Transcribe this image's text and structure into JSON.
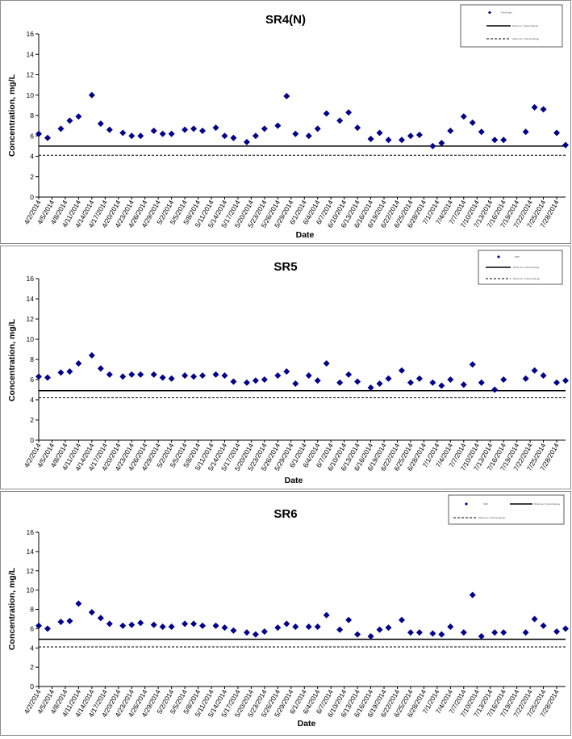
{
  "charts": [
    {
      "title": "SR4(N)",
      "ylabel": "Concentration, mg/L",
      "xlabel": "Date",
      "legend": {
        "marker_label": "Field Data",
        "solid_label": "Minimum Criteria Range",
        "dashed_label": "Maximum Criteria Range"
      }
    },
    {
      "title": "SR5",
      "ylabel": "Concentration, mg/L",
      "xlabel": "Date",
      "legend": {
        "marker_label": "SR5",
        "solid_label": "Minimum Criteria Range",
        "dashed_label": "Maximum Criteria Range"
      }
    },
    {
      "title": "SR6",
      "ylabel": "Concentration, mg/L",
      "xlabel": "Date",
      "legend": {
        "marker_label": "SR6",
        "solid_label": "Minimum Criteria Range",
        "dashed_label": "Maximum Criteria Range"
      }
    }
  ],
  "chart_data": [
    {
      "type": "scatter",
      "title": "SR4(N)",
      "xlabel": "Date",
      "ylabel": "Concentration, mg/L",
      "ylim": [
        0,
        16
      ],
      "yticks": [
        0,
        2,
        4,
        6,
        8,
        10,
        12,
        14,
        16
      ],
      "xlim": [
        "4/2/2014",
        "7/30/2014"
      ],
      "xticks": [
        "4/2/2014",
        "4/5/2014",
        "4/8/2014",
        "4/11/2014",
        "4/14/2014",
        "4/17/2014",
        "4/20/2014",
        "4/23/2014",
        "4/26/2014",
        "4/29/2014",
        "5/2/2014",
        "5/5/2014",
        "5/8/2014",
        "5/11/2014",
        "5/14/2014",
        "5/17/2014",
        "5/20/2014",
        "5/23/2014",
        "5/26/2014",
        "5/29/2014",
        "6/1/2014",
        "6/4/2014",
        "6/7/2014",
        "6/10/2014",
        "6/13/2014",
        "6/16/2014",
        "6/19/2014",
        "6/22/2014",
        "6/25/2014",
        "6/28/2014",
        "7/1/2014",
        "7/4/2014",
        "7/7/2014",
        "7/10/2014",
        "7/13/2014",
        "7/16/2014",
        "7/19/2014",
        "7/22/2014",
        "7/25/2014",
        "7/28/2014"
      ],
      "grid": false,
      "legend_position": "top-right",
      "marker_color": "#00008b",
      "reference_lines": [
        {
          "style": "solid",
          "value": 5.0,
          "color": "#000000"
        },
        {
          "style": "dashed",
          "value": 4.1,
          "color": "#000000"
        }
      ],
      "points": [
        {
          "x": "4/2/2014",
          "y": 6.2
        },
        {
          "x": "4/4/2014",
          "y": 5.8
        },
        {
          "x": "4/7/2014",
          "y": 6.7
        },
        {
          "x": "4/9/2014",
          "y": 7.5
        },
        {
          "x": "4/11/2014",
          "y": 7.9
        },
        {
          "x": "4/14/2014",
          "y": 10.0
        },
        {
          "x": "4/16/2014",
          "y": 7.2
        },
        {
          "x": "4/18/2014",
          "y": 6.6
        },
        {
          "x": "4/21/2014",
          "y": 6.3
        },
        {
          "x": "4/23/2014",
          "y": 6.0
        },
        {
          "x": "4/25/2014",
          "y": 6.0
        },
        {
          "x": "4/28/2014",
          "y": 6.5
        },
        {
          "x": "4/30/2014",
          "y": 6.2
        },
        {
          "x": "5/2/2014",
          "y": 6.2
        },
        {
          "x": "5/5/2014",
          "y": 6.6
        },
        {
          "x": "5/7/2014",
          "y": 6.7
        },
        {
          "x": "5/9/2014",
          "y": 6.5
        },
        {
          "x": "5/12/2014",
          "y": 6.8
        },
        {
          "x": "5/14/2014",
          "y": 6.0
        },
        {
          "x": "5/16/2014",
          "y": 5.8
        },
        {
          "x": "5/19/2014",
          "y": 5.4
        },
        {
          "x": "5/21/2014",
          "y": 6.0
        },
        {
          "x": "5/23/2014",
          "y": 6.7
        },
        {
          "x": "5/26/2014",
          "y": 7.0
        },
        {
          "x": "5/28/2014",
          "y": 9.9
        },
        {
          "x": "5/30/2014",
          "y": 6.2
        },
        {
          "x": "6/2/2014",
          "y": 6.0
        },
        {
          "x": "6/4/2014",
          "y": 6.7
        },
        {
          "x": "6/6/2014",
          "y": 8.2
        },
        {
          "x": "6/9/2014",
          "y": 7.5
        },
        {
          "x": "6/11/2014",
          "y": 8.3
        },
        {
          "x": "6/13/2014",
          "y": 6.8
        },
        {
          "x": "6/16/2014",
          "y": 5.7
        },
        {
          "x": "6/18/2014",
          "y": 6.3
        },
        {
          "x": "6/20/2014",
          "y": 5.6
        },
        {
          "x": "6/23/2014",
          "y": 5.6
        },
        {
          "x": "6/25/2014",
          "y": 6.0
        },
        {
          "x": "6/27/2014",
          "y": 6.1
        },
        {
          "x": "6/30/2014",
          "y": 5.0
        },
        {
          "x": "7/2/2014",
          "y": 5.3
        },
        {
          "x": "7/4/2014",
          "y": 6.5
        },
        {
          "x": "7/7/2014",
          "y": 7.9
        },
        {
          "x": "7/9/2014",
          "y": 7.3
        },
        {
          "x": "7/11/2014",
          "y": 6.4
        },
        {
          "x": "7/14/2014",
          "y": 5.6
        },
        {
          "x": "7/16/2014",
          "y": 5.6
        },
        {
          "x": "7/21/2014",
          "y": 6.4
        },
        {
          "x": "7/23/2014",
          "y": 8.8
        },
        {
          "x": "7/25/2014",
          "y": 8.6
        },
        {
          "x": "7/28/2014",
          "y": 6.3
        },
        {
          "x": "7/30/2014",
          "y": 5.1
        }
      ]
    },
    {
      "type": "scatter",
      "title": "SR5",
      "xlabel": "Date",
      "ylabel": "Concentration, mg/L",
      "ylim": [
        0,
        16
      ],
      "yticks": [
        0,
        2,
        4,
        6,
        8,
        10,
        12,
        14,
        16
      ],
      "xlim": [
        "4/2/2014",
        "7/30/2014"
      ],
      "xticks": [
        "4/2/2014",
        "4/5/2014",
        "4/8/2014",
        "4/11/2014",
        "4/14/2014",
        "4/17/2014",
        "4/20/2014",
        "4/23/2014",
        "4/26/2014",
        "4/29/2014",
        "5/2/2014",
        "5/5/2014",
        "5/8/2014",
        "5/11/2014",
        "5/14/2014",
        "5/17/2014",
        "5/20/2014",
        "5/23/2014",
        "5/26/2014",
        "5/29/2014",
        "6/1/2014",
        "6/4/2014",
        "6/7/2014",
        "6/10/2014",
        "6/13/2014",
        "6/16/2014",
        "6/19/2014",
        "6/22/2014",
        "6/25/2014",
        "6/28/2014",
        "7/1/2014",
        "7/4/2014",
        "7/7/2014",
        "7/10/2014",
        "7/13/2014",
        "7/16/2014",
        "7/19/2014",
        "7/22/2014",
        "7/25/2014",
        "7/28/2014"
      ],
      "grid": false,
      "legend_position": "top-right",
      "marker_color": "#00008b",
      "reference_lines": [
        {
          "style": "solid",
          "value": 4.9,
          "color": "#000000"
        },
        {
          "style": "dashed",
          "value": 4.2,
          "color": "#000000"
        }
      ],
      "points": [
        {
          "x": "4/2/2014",
          "y": 6.3
        },
        {
          "x": "4/4/2014",
          "y": 6.2
        },
        {
          "x": "4/7/2014",
          "y": 6.7
        },
        {
          "x": "4/9/2014",
          "y": 6.8
        },
        {
          "x": "4/11/2014",
          "y": 7.6
        },
        {
          "x": "4/14/2014",
          "y": 8.4
        },
        {
          "x": "4/16/2014",
          "y": 7.1
        },
        {
          "x": "4/18/2014",
          "y": 6.5
        },
        {
          "x": "4/21/2014",
          "y": 6.3
        },
        {
          "x": "4/23/2014",
          "y": 6.5
        },
        {
          "x": "4/25/2014",
          "y": 6.5
        },
        {
          "x": "4/28/2014",
          "y": 6.5
        },
        {
          "x": "4/30/2014",
          "y": 6.2
        },
        {
          "x": "5/2/2014",
          "y": 6.1
        },
        {
          "x": "5/5/2014",
          "y": 6.4
        },
        {
          "x": "5/7/2014",
          "y": 6.3
        },
        {
          "x": "5/9/2014",
          "y": 6.4
        },
        {
          "x": "5/12/2014",
          "y": 6.5
        },
        {
          "x": "5/14/2014",
          "y": 6.4
        },
        {
          "x": "5/16/2014",
          "y": 5.8
        },
        {
          "x": "5/19/2014",
          "y": 5.7
        },
        {
          "x": "5/21/2014",
          "y": 5.9
        },
        {
          "x": "5/23/2014",
          "y": 6.0
        },
        {
          "x": "5/26/2014",
          "y": 6.4
        },
        {
          "x": "5/28/2014",
          "y": 6.8
        },
        {
          "x": "5/30/2014",
          "y": 5.6
        },
        {
          "x": "6/2/2014",
          "y": 6.4
        },
        {
          "x": "6/4/2014",
          "y": 5.9
        },
        {
          "x": "6/6/2014",
          "y": 7.6
        },
        {
          "x": "6/9/2014",
          "y": 5.7
        },
        {
          "x": "6/11/2014",
          "y": 6.5
        },
        {
          "x": "6/13/2014",
          "y": 5.8
        },
        {
          "x": "6/16/2014",
          "y": 5.2
        },
        {
          "x": "6/18/2014",
          "y": 5.6
        },
        {
          "x": "6/20/2014",
          "y": 6.1
        },
        {
          "x": "6/23/2014",
          "y": 6.9
        },
        {
          "x": "6/25/2014",
          "y": 5.7
        },
        {
          "x": "6/27/2014",
          "y": 6.1
        },
        {
          "x": "6/30/2014",
          "y": 5.7
        },
        {
          "x": "7/2/2014",
          "y": 5.4
        },
        {
          "x": "7/4/2014",
          "y": 6.0
        },
        {
          "x": "7/7/2014",
          "y": 5.5
        },
        {
          "x": "7/9/2014",
          "y": 7.5
        },
        {
          "x": "7/11/2014",
          "y": 5.7
        },
        {
          "x": "7/14/2014",
          "y": 5.0
        },
        {
          "x": "7/16/2014",
          "y": 6.0
        },
        {
          "x": "7/21/2014",
          "y": 6.1
        },
        {
          "x": "7/23/2014",
          "y": 6.9
        },
        {
          "x": "7/25/2014",
          "y": 6.4
        },
        {
          "x": "7/28/2014",
          "y": 5.7
        },
        {
          "x": "7/30/2014",
          "y": 5.9
        }
      ]
    },
    {
      "type": "scatter",
      "title": "SR6",
      "xlabel": "Date",
      "ylabel": "Concentration, mg/L",
      "ylim": [
        0,
        16
      ],
      "yticks": [
        0,
        2,
        4,
        6,
        8,
        10,
        12,
        14,
        16
      ],
      "xlim": [
        "4/2/2014",
        "7/30/2014"
      ],
      "xticks": [
        "4/2/2014",
        "4/5/2014",
        "4/8/2014",
        "4/11/2014",
        "4/14/2014",
        "4/17/2014",
        "4/20/2014",
        "4/23/2014",
        "4/26/2014",
        "4/29/2014",
        "5/2/2014",
        "5/5/2014",
        "5/8/2014",
        "5/11/2014",
        "5/14/2014",
        "5/17/2014",
        "5/20/2014",
        "5/23/2014",
        "5/26/2014",
        "5/29/2014",
        "6/1/2014",
        "6/4/2014",
        "6/7/2014",
        "6/10/2014",
        "6/13/2014",
        "6/16/2014",
        "6/19/2014",
        "6/22/2014",
        "6/25/2014",
        "6/28/2014",
        "7/1/2014",
        "7/4/2014",
        "7/7/2014",
        "7/10/2014",
        "7/13/2014",
        "7/16/2014",
        "7/19/2014",
        "7/22/2014",
        "7/25/2014",
        "7/28/2014"
      ],
      "grid": false,
      "legend_position": "top-right",
      "marker_color": "#00008b",
      "reference_lines": [
        {
          "style": "solid",
          "value": 4.9,
          "color": "#000000"
        },
        {
          "style": "dashed",
          "value": 4.1,
          "color": "#000000"
        }
      ],
      "points": [
        {
          "x": "4/2/2014",
          "y": 6.3
        },
        {
          "x": "4/4/2014",
          "y": 6.0
        },
        {
          "x": "4/7/2014",
          "y": 6.7
        },
        {
          "x": "4/9/2014",
          "y": 6.8
        },
        {
          "x": "4/11/2014",
          "y": 8.6
        },
        {
          "x": "4/14/2014",
          "y": 7.7
        },
        {
          "x": "4/16/2014",
          "y": 7.1
        },
        {
          "x": "4/18/2014",
          "y": 6.5
        },
        {
          "x": "4/21/2014",
          "y": 6.3
        },
        {
          "x": "4/23/2014",
          "y": 6.4
        },
        {
          "x": "4/25/2014",
          "y": 6.6
        },
        {
          "x": "4/28/2014",
          "y": 6.4
        },
        {
          "x": "4/30/2014",
          "y": 6.2
        },
        {
          "x": "5/2/2014",
          "y": 6.2
        },
        {
          "x": "5/5/2014",
          "y": 6.5
        },
        {
          "x": "5/7/2014",
          "y": 6.5
        },
        {
          "x": "5/9/2014",
          "y": 6.3
        },
        {
          "x": "5/12/2014",
          "y": 6.3
        },
        {
          "x": "5/14/2014",
          "y": 6.1
        },
        {
          "x": "5/16/2014",
          "y": 5.8
        },
        {
          "x": "5/19/2014",
          "y": 5.6
        },
        {
          "x": "5/21/2014",
          "y": 5.4
        },
        {
          "x": "5/23/2014",
          "y": 5.7
        },
        {
          "x": "5/26/2014",
          "y": 6.1
        },
        {
          "x": "5/28/2014",
          "y": 6.5
        },
        {
          "x": "5/30/2014",
          "y": 6.2
        },
        {
          "x": "6/2/2014",
          "y": 6.2
        },
        {
          "x": "6/4/2014",
          "y": 6.2
        },
        {
          "x": "6/6/2014",
          "y": 7.4
        },
        {
          "x": "6/9/2014",
          "y": 5.9
        },
        {
          "x": "6/11/2014",
          "y": 6.9
        },
        {
          "x": "6/13/2014",
          "y": 5.4
        },
        {
          "x": "6/16/2014",
          "y": 5.2
        },
        {
          "x": "6/18/2014",
          "y": 5.9
        },
        {
          "x": "6/20/2014",
          "y": 6.1
        },
        {
          "x": "6/23/2014",
          "y": 6.9
        },
        {
          "x": "6/25/2014",
          "y": 5.6
        },
        {
          "x": "6/27/2014",
          "y": 5.6
        },
        {
          "x": "6/30/2014",
          "y": 5.5
        },
        {
          "x": "7/2/2014",
          "y": 5.4
        },
        {
          "x": "7/4/2014",
          "y": 6.2
        },
        {
          "x": "7/7/2014",
          "y": 5.6
        },
        {
          "x": "7/9/2014",
          "y": 9.5
        },
        {
          "x": "7/11/2014",
          "y": 5.2
        },
        {
          "x": "7/14/2014",
          "y": 5.6
        },
        {
          "x": "7/16/2014",
          "y": 5.6
        },
        {
          "x": "7/21/2014",
          "y": 5.6
        },
        {
          "x": "7/23/2014",
          "y": 7.0
        },
        {
          "x": "7/25/2014",
          "y": 6.3
        },
        {
          "x": "7/28/2014",
          "y": 5.7
        },
        {
          "x": "7/30/2014",
          "y": 6.0
        }
      ]
    }
  ]
}
